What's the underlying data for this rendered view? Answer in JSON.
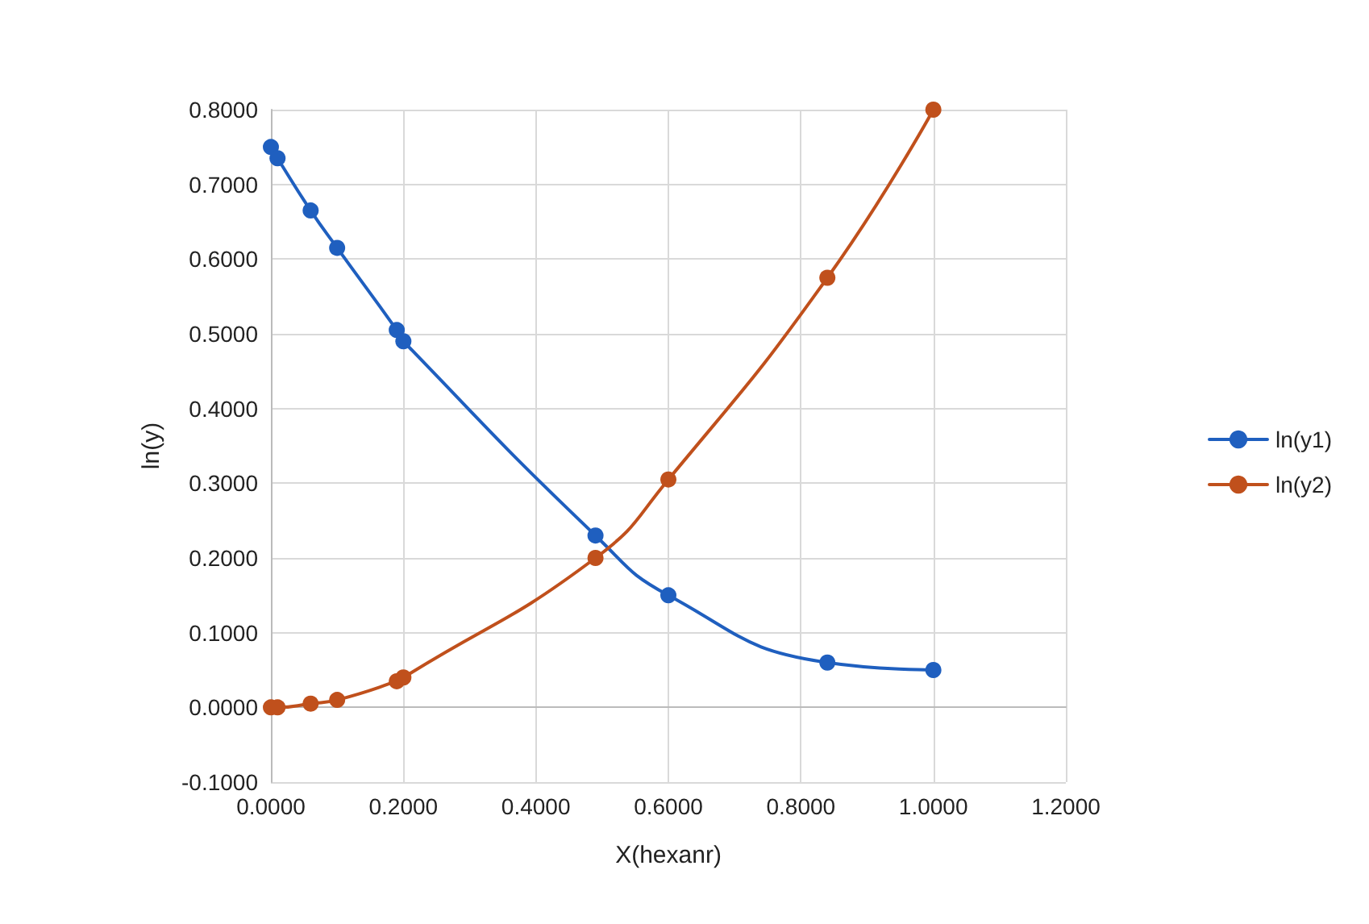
{
  "chart_data": {
    "type": "line",
    "xlabel": "X(hexanr)",
    "ylabel": "ln(y)",
    "series": [
      {
        "name": "ln(y1)",
        "color": "#1f5fbf",
        "x": [
          0.0,
          0.01,
          0.06,
          0.1,
          0.19,
          0.2,
          0.49,
          0.6,
          0.84,
          1.0
        ],
        "values": [
          0.75,
          0.735,
          0.665,
          0.615,
          0.505,
          0.49,
          0.23,
          0.15,
          0.06,
          0.05
        ]
      },
      {
        "name": "ln(y2)",
        "color": "#c0501c",
        "x": [
          0.0,
          0.01,
          0.06,
          0.1,
          0.19,
          0.2,
          0.49,
          0.6,
          0.84,
          1.0
        ],
        "values": [
          0.0,
          0.0,
          0.005,
          0.01,
          0.035,
          0.04,
          0.2,
          0.305,
          0.575,
          0.8
        ]
      }
    ],
    "xlim": [
      0,
      1.2
    ],
    "xticks": [
      {
        "value": 0,
        "label": "0.0000"
      },
      {
        "value": 0.2,
        "label": "0.2000"
      },
      {
        "value": 0.4,
        "label": "0.4000"
      },
      {
        "value": 0.6,
        "label": "0.6000"
      },
      {
        "value": 0.8,
        "label": "0.8000"
      },
      {
        "value": 1.0,
        "label": "1.0000"
      },
      {
        "value": 1.2,
        "label": "1.2000"
      }
    ],
    "ylim": [
      -0.1,
      0.8
    ],
    "yticks": [
      {
        "value": -0.1,
        "label": "-0.1000"
      },
      {
        "value": 0,
        "label": "0.0000"
      },
      {
        "value": 0.1,
        "label": "0.1000"
      },
      {
        "value": 0.2,
        "label": "0.2000"
      },
      {
        "value": 0.3,
        "label": "0.3000"
      },
      {
        "value": 0.4,
        "label": "0.4000"
      },
      {
        "value": 0.5,
        "label": "0.5000"
      },
      {
        "value": 0.6,
        "label": "0.6000"
      },
      {
        "value": 0.7,
        "label": "0.7000"
      },
      {
        "value": 0.8,
        "label": "0.8000"
      }
    ],
    "grid": true,
    "legend": "right",
    "marker": "circle",
    "line_style": "solid"
  }
}
